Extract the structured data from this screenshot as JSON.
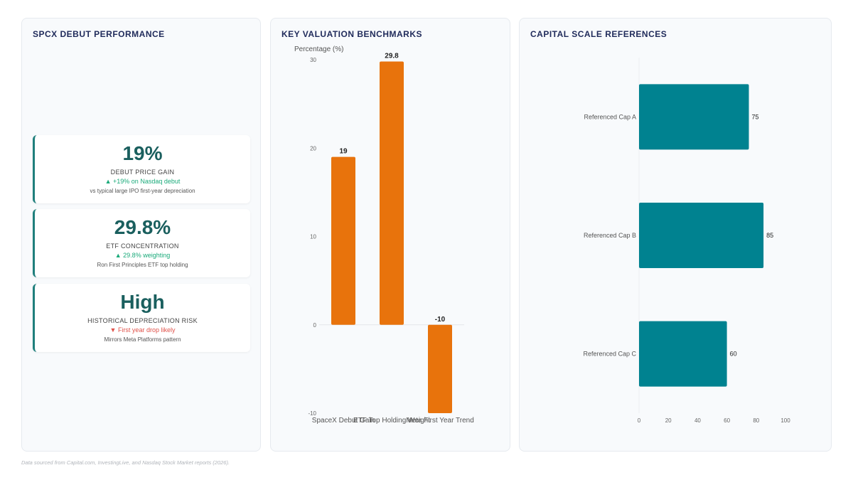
{
  "panels": {
    "left_title": "SPCX DEBUT PERFORMANCE",
    "mid_title": "KEY VALUATION BENCHMARKS",
    "right_title": "CAPITAL SCALE REFERENCES"
  },
  "kpis": [
    {
      "value": "19%",
      "label": "DEBUT PRICE GAIN",
      "delta": "▲ +19% on Nasdaq debut",
      "delta_dir": "up",
      "note": "vs typical large IPO first-year depreciation"
    },
    {
      "value": "29.8%",
      "label": "ETF CONCENTRATION",
      "delta": "▲ 29.8% weighting",
      "delta_dir": "up",
      "note": "Ron First Principles ETF top holding"
    },
    {
      "value": "High",
      "label": "HISTORICAL DEPRECIATION RISK",
      "delta": "▼ First year drop likely",
      "delta_dir": "down",
      "note": "Mirrors Meta Platforms pattern"
    }
  ],
  "colors": {
    "accent_teal": "#1f7f7c",
    "bar_orange": "#e8730c",
    "bar_teal": "#008290",
    "up": "#1aaa7a",
    "down": "#e0524a"
  },
  "chart_data": [
    {
      "type": "bar",
      "title": "KEY VALUATION BENCHMARKS",
      "ylabel": "Percentage (%)",
      "categories": [
        "SpaceX Debut Gain",
        "ETF Top Holding Weight",
        "Meta First Year Trend"
      ],
      "values": [
        19,
        29.8,
        -10
      ],
      "data_labels": [
        "19",
        "29.8",
        "-10"
      ],
      "ylim": [
        -10,
        30
      ],
      "yticks": [
        -10,
        0,
        10,
        20,
        30
      ],
      "grid": false
    },
    {
      "type": "bar",
      "orientation": "horizontal",
      "title": "CAPITAL SCALE REFERENCES",
      "categories": [
        "Referenced Cap A",
        "Referenced Cap B",
        "Referenced Cap C"
      ],
      "values": [
        75,
        85,
        60
      ],
      "data_labels": [
        "75",
        "85",
        "60"
      ],
      "xlim": [
        0,
        100
      ],
      "xticks": [
        0,
        20,
        40,
        60,
        80,
        100
      ],
      "grid": false
    }
  ],
  "footer": "Data sourced from Capital.com, InvestingLive, and Nasdaq Stock Market reports (2026)."
}
